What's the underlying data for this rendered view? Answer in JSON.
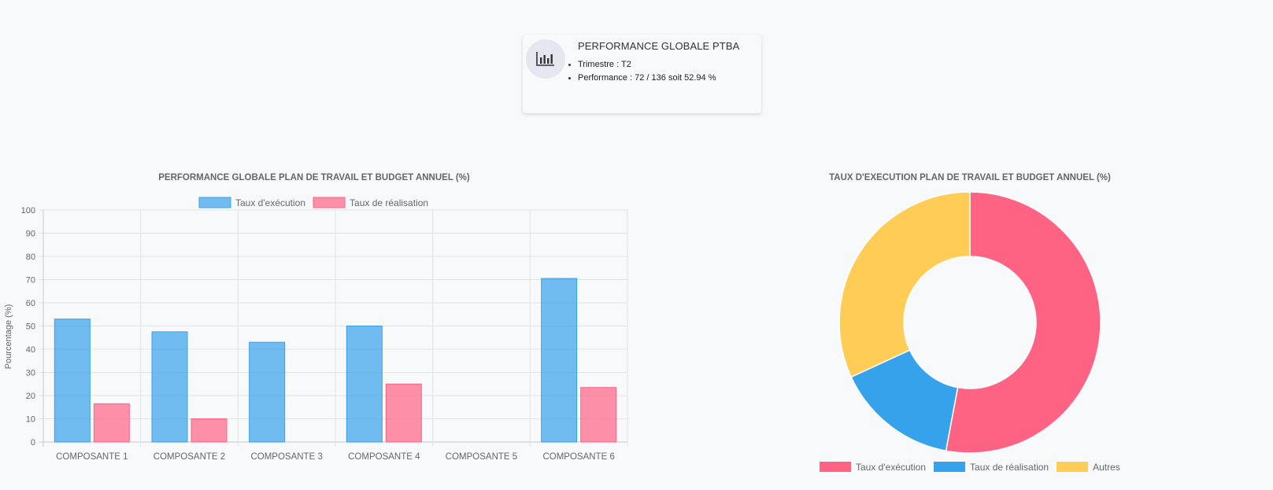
{
  "summary_card": {
    "icon": "bar-chart-icon",
    "title": "PERFORMANCE GLOBALE PTBA",
    "items": [
      "Trimestre : T2",
      "Performance : 72 / 136 soit 52.94 %"
    ]
  },
  "chart_data": [
    {
      "type": "bar",
      "title": "PERFORMANCE GLOBALE PLAN DE TRAVAIL ET BUDGET ANNUEL (%)",
      "ylabel": "Pourcentage (%)",
      "xlabel": "",
      "ylim": [
        0,
        100
      ],
      "yticks": [
        "0",
        "10",
        "20",
        "30",
        "40",
        "50",
        "60",
        "70",
        "80",
        "90",
        "100"
      ],
      "categories": [
        "COMPOSANTE 1",
        "COMPOSANTE 2",
        "COMPOSANTE 3",
        "COMPOSANTE 4",
        "COMPOSANTE 5",
        "COMPOSANTE 6"
      ],
      "series": [
        {
          "name": "Taux d'exécution",
          "values": [
            53,
            47.5,
            43,
            50,
            0,
            70.5
          ],
          "color": "#36a2eb",
          "fill": "rgba(54,162,235,0.7)"
        },
        {
          "name": "Taux de réalisation",
          "values": [
            16.5,
            10,
            0,
            25,
            0,
            23.5
          ],
          "color": "#ff6384",
          "fill": "rgba(255,99,132,0.7)"
        }
      ],
      "grid": true,
      "legend": "top"
    },
    {
      "type": "pie",
      "title": "TAUX D'EXECUTION PLAN DE TRAVAIL ET BUDGET ANNUEL (%)",
      "labels": [
        "Taux d'exécution",
        "Taux de réalisation",
        "Autres"
      ],
      "values": [
        52.94,
        15.2,
        31.86
      ],
      "colors": [
        "#ff6384",
        "#36a2eb",
        "#ffcd56"
      ],
      "legend": "bottom"
    }
  ]
}
